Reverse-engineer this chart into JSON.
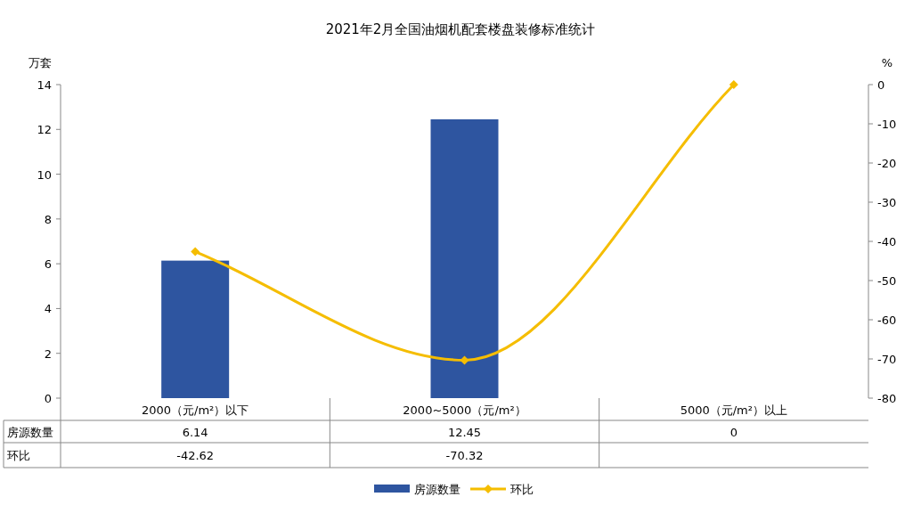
{
  "chart_data": {
    "type": "bar",
    "title": "2021年2月全国油烟机配套楼盘装修标准统计",
    "ylabel": "万套",
    "y2label": "%",
    "categories": [
      "2000（元/m²）以下",
      "2000~5000（元/m²）",
      "5000（元/m²）以上"
    ],
    "series": [
      {
        "name": "房源数量",
        "type": "bar",
        "color": "#2e55a0",
        "values": [
          6.14,
          12.45,
          0
        ],
        "value_labels": [
          "6.14",
          "12.45",
          "0"
        ]
      },
      {
        "name": "环比",
        "type": "line",
        "axis": "y2",
        "color": "#f5bd00",
        "values": [
          -42.62,
          -70.32,
          0
        ],
        "value_labels": [
          "-42.62",
          "-70.32",
          null
        ]
      }
    ],
    "ylim": [
      0,
      14
    ],
    "yticks": [
      0,
      2,
      4,
      6,
      8,
      10,
      12,
      14
    ],
    "y2lim": [
      -80,
      0
    ],
    "y2ticks": [
      -80,
      -70,
      -60,
      -50,
      -40,
      -30,
      -20,
      -10,
      0
    ],
    "marker": "diamond",
    "legend": "bottom",
    "grid": false
  }
}
